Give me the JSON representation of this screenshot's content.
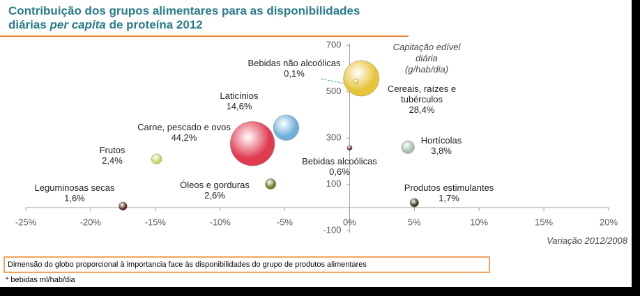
{
  "chart_data": {
    "type": "bubble",
    "title": {
      "line1": "Contribuição dos grupos alimentares para as disponibilidades",
      "line2_start": "diárias ",
      "line2_italic": "per capita",
      "line2_end": " de proteína 2012"
    },
    "y_label": [
      "Capitação edível diária",
      "(g/hab/dia)"
    ],
    "x_label": "Variação 2012/2008",
    "categories": [
      "Leguminosas secas",
      "Frutos",
      "Carne, pescado e ovos",
      "Laticínios",
      "Óleos e gorduras",
      "Bebidas não alcoólicas",
      "Cereais, raízes e tubérculos",
      "Bebidas alcoólicas",
      "Hortícolas",
      "Produtos estimulantes"
    ],
    "x": [
      -17.5,
      -14.9,
      -7.5,
      -4.9,
      -6.1,
      0.5,
      0.9,
      0.0,
      4.5,
      5.0
    ],
    "values": [
      6,
      210,
      276,
      345,
      102,
      545,
      558,
      258,
      261,
      21
    ],
    "sizes": [
      1.6,
      2.4,
      44.2,
      14.6,
      2.6,
      0.1,
      28.4,
      0.6,
      3.8,
      1.7
    ],
    "size_labels": [
      "1,6%",
      "2,4%",
      "44,2%",
      "14,6%",
      "2,6%",
      "0,1%",
      "28,4%",
      "0,6%",
      "3,8%",
      "1,7%"
    ],
    "colors": [
      "#5a2a22",
      "#c8d860",
      "#e03a50",
      "#6fb0d8",
      "#6e7d2a",
      "#f0d050",
      "#e8c43a",
      "#5a2420",
      "#a8c0b0",
      "#3e3a1e"
    ],
    "xlim": [
      -25,
      20
    ],
    "xticks": [
      {
        "value": -25,
        "label": "-25%"
      },
      {
        "value": -20,
        "label": "-20%"
      },
      {
        "value": -15,
        "label": "-15%"
      },
      {
        "value": -10,
        "label": "-10%"
      },
      {
        "value": -5,
        "label": "-5%"
      },
      {
        "value": 0,
        "label": "0%"
      },
      {
        "value": 5,
        "label": "5%"
      },
      {
        "value": 10,
        "label": "10%"
      },
      {
        "value": 15,
        "label": "15%"
      },
      {
        "value": 20,
        "label": "20%"
      }
    ],
    "ylim": [
      -100,
      700
    ],
    "yticks": [
      -100,
      100,
      300,
      500,
      700
    ],
    "note": "Dimensão do globo proporcional à importancia face às disponibilidades do grupo de produtos alimentares",
    "footnote": "* bebidas ml/hab/dia"
  }
}
